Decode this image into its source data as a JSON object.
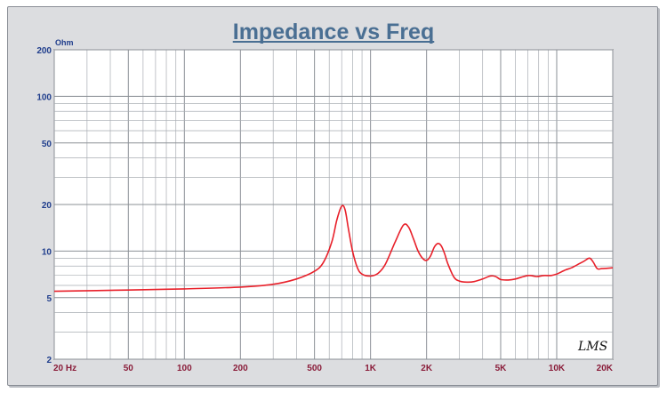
{
  "chart_data": {
    "type": "line",
    "title": "Impedance vs Freq",
    "ylabel": "Ohm",
    "xlabel": "",
    "xscale": "log",
    "yscale": "log",
    "xlim": [
      20,
      20000
    ],
    "ylim": [
      2,
      200
    ],
    "grid": true,
    "x_tick_labels": [
      {
        "value": 20,
        "label": "20  Hz"
      },
      {
        "value": 50,
        "label": "50"
      },
      {
        "value": 100,
        "label": "100"
      },
      {
        "value": 200,
        "label": "200"
      },
      {
        "value": 500,
        "label": "500"
      },
      {
        "value": 1000,
        "label": "1K"
      },
      {
        "value": 2000,
        "label": "2K"
      },
      {
        "value": 5000,
        "label": "5K"
      },
      {
        "value": 10000,
        "label": "10K"
      },
      {
        "value": 20000,
        "label": "20K"
      }
    ],
    "y_tick_labels": [
      {
        "value": 200,
        "label": "200"
      },
      {
        "value": 100,
        "label": "100"
      },
      {
        "value": 50,
        "label": "50"
      },
      {
        "value": 20,
        "label": "20"
      },
      {
        "value": 10,
        "label": "10"
      },
      {
        "value": 5,
        "label": "5"
      },
      {
        "value": 2,
        "label": "2"
      }
    ],
    "series": [
      {
        "color": "#e8202a",
        "x": [
          20,
          50,
          100,
          200,
          300,
          400,
          500,
          560,
          620,
          660,
          700,
          730,
          760,
          800,
          850,
          900,
          1000,
          1100,
          1200,
          1350,
          1500,
          1600,
          1700,
          1800,
          1900,
          2000,
          2100,
          2200,
          2300,
          2400,
          2500,
          2600,
          2800,
          3000,
          3300,
          3600,
          4000,
          4400,
          4700,
          5000,
          5500,
          6000,
          7000,
          7800,
          8500,
          9300,
          10000,
          11000,
          12000,
          13000,
          14000,
          15000,
          15700,
          16500,
          17500,
          20000
        ],
        "y": [
          5.5,
          5.6,
          5.7,
          5.85,
          6.1,
          6.6,
          7.4,
          8.5,
          11.5,
          16,
          19.5,
          18.5,
          14,
          10,
          7.8,
          7.1,
          6.9,
          7.2,
          8.2,
          11.3,
          14.7,
          14.3,
          12,
          10,
          9,
          8.7,
          9.3,
          10.6,
          11.2,
          10.8,
          9.6,
          8.3,
          6.8,
          6.4,
          6.3,
          6.35,
          6.6,
          6.9,
          6.85,
          6.55,
          6.5,
          6.6,
          6.95,
          6.85,
          6.95,
          6.95,
          7.1,
          7.5,
          7.8,
          8.2,
          8.6,
          9.0,
          8.5,
          7.7,
          7.7,
          7.8
        ]
      }
    ],
    "annotation": "LMS"
  }
}
